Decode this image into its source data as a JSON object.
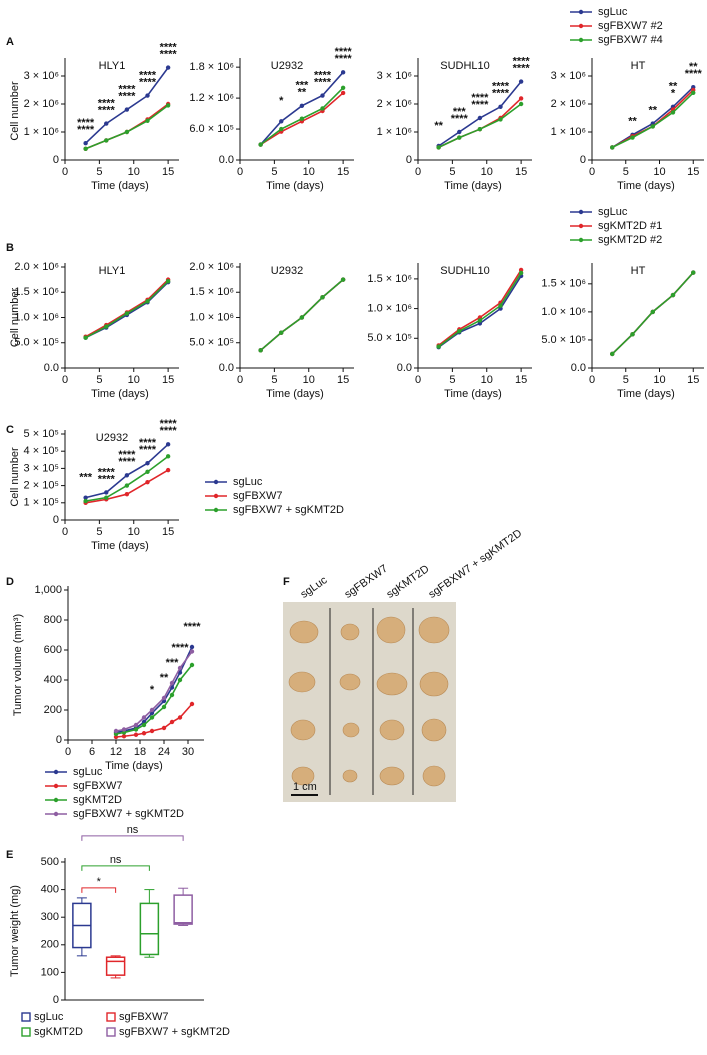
{
  "panel_labels": [
    "A",
    "B",
    "C",
    "D",
    "E",
    "F"
  ],
  "chart_data": [
    {
      "type": "line",
      "title": "HLY1",
      "x": [
        3,
        6,
        9,
        12,
        15
      ],
      "xlim": [
        0,
        16
      ],
      "xticks": [
        0,
        5,
        10,
        15
      ],
      "xlabel": "Time (days)",
      "ylabel": "Cell number",
      "ylim": [
        0,
        3500000
      ],
      "yticks": [
        0,
        {
          "value": 1000000,
          "label": "1 × 10⁶"
        },
        {
          "value": 2000000,
          "label": "2 × 10⁶"
        },
        {
          "value": 3000000,
          "label": "3 × 10⁶"
        }
      ],
      "series": [
        {
          "color": "#2b3990",
          "values": [
            600000,
            1300000,
            1800000,
            2300000,
            3300000
          ]
        },
        {
          "color": "#e0262a",
          "values": [
            400000,
            700000,
            1000000,
            1450000,
            2000000
          ],
          "significance": [
            "****",
            "****",
            "****",
            "****",
            "****"
          ]
        },
        {
          "color": "#2ca02c",
          "values": [
            400000,
            700000,
            1000000,
            1400000,
            1950000
          ],
          "significance": [
            "****",
            "****",
            "****",
            "****",
            "****"
          ]
        }
      ]
    },
    {
      "type": "line",
      "title": "U2932",
      "x": [
        3,
        6,
        9,
        12,
        15
      ],
      "xlim": [
        0,
        16
      ],
      "xticks": [
        0,
        5,
        10,
        15
      ],
      "xlabel": "Time (days)",
      "ylim": [
        0,
        1900000
      ],
      "yticks": [
        {
          "value": 0,
          "label": "0.0"
        },
        {
          "value": 600000,
          "label": "6.0 × 10⁵"
        },
        {
          "value": 1200000,
          "label": "1.2 × 10⁶"
        },
        {
          "value": 1800000,
          "label": "1.8 × 10⁶"
        }
      ],
      "series": [
        {
          "color": "#2b3990",
          "values": [
            300000,
            750000,
            1050000,
            1250000,
            1700000
          ]
        },
        {
          "color": "#e0262a",
          "values": [
            300000,
            550000,
            750000,
            950000,
            1300000
          ],
          "significance": [
            null,
            "*",
            "***",
            "****",
            "****"
          ]
        },
        {
          "color": "#2ca02c",
          "values": [
            300000,
            600000,
            800000,
            1000000,
            1400000
          ],
          "significance": [
            null,
            null,
            "**",
            "****",
            "****"
          ]
        }
      ]
    },
    {
      "type": "line",
      "title": "SUDHL10",
      "x": [
        3,
        6,
        9,
        12,
        15
      ],
      "xlim": [
        0,
        16
      ],
      "xticks": [
        0,
        5,
        10,
        15
      ],
      "xlabel": "Time (days)",
      "ylim": [
        0,
        3500000
      ],
      "yticks": [
        0,
        {
          "value": 1000000,
          "label": "1 × 10⁶"
        },
        {
          "value": 2000000,
          "label": "2 × 10⁶"
        },
        {
          "value": 3000000,
          "label": "3 × 10⁶"
        }
      ],
      "series": [
        {
          "color": "#2b3990",
          "values": [
            500000,
            1000000,
            1500000,
            1900000,
            2800000
          ]
        },
        {
          "color": "#e0262a",
          "values": [
            450000,
            800000,
            1100000,
            1500000,
            2200000
          ],
          "significance": [
            "**",
            "***",
            "****",
            "****",
            "****"
          ]
        },
        {
          "color": "#2ca02c",
          "values": [
            450000,
            800000,
            1100000,
            1450000,
            2000000
          ],
          "significance": [
            null,
            "****",
            "****",
            "****",
            "****"
          ]
        }
      ]
    },
    {
      "type": "line",
      "title": "HT",
      "x": [
        3,
        6,
        9,
        12,
        15
      ],
      "xlim": [
        0,
        16
      ],
      "xticks": [
        0,
        5,
        10,
        15
      ],
      "xlabel": "Time (days)",
      "ylim": [
        0,
        3500000
      ],
      "legend": "top",
      "yticks": [
        0,
        {
          "value": 1000000,
          "label": "1 × 10⁶"
        },
        {
          "value": 2000000,
          "label": "2 × 10⁶"
        },
        {
          "value": 3000000,
          "label": "3 × 10⁶"
        }
      ],
      "series": [
        {
          "name": "sgLuc",
          "color": "#2b3990",
          "values": [
            450000,
            900000,
            1300000,
            1900000,
            2600000
          ]
        },
        {
          "name": "sgFBXW7 #2",
          "color": "#e0262a",
          "values": [
            450000,
            850000,
            1200000,
            1800000,
            2500000
          ],
          "significance": [
            null,
            null,
            null,
            "**",
            "**"
          ]
        },
        {
          "name": "sgFBXW7 #4",
          "color": "#2ca02c",
          "values": [
            450000,
            800000,
            1200000,
            1700000,
            2400000
          ],
          "significance": [
            null,
            "**",
            "**",
            "*",
            "****"
          ]
        }
      ]
    },
    {
      "type": "line",
      "title": "HLY1",
      "x": [
        3,
        6,
        9,
        12,
        15
      ],
      "xlim": [
        0,
        16
      ],
      "xticks": [
        0,
        5,
        10,
        15
      ],
      "xlabel": "Time (days)",
      "ylabel": "Cell number",
      "ylim": [
        0,
        2000000
      ],
      "yticks": [
        {
          "value": 0,
          "label": "0.0"
        },
        {
          "value": 500000,
          "label": "5.0 × 10⁵"
        },
        {
          "value": 1000000,
          "label": "1.0 × 10⁶"
        },
        {
          "value": 1500000,
          "label": "1.5 × 10⁶"
        },
        {
          "value": 2000000,
          "label": "2.0 × 10⁶"
        }
      ],
      "series": [
        {
          "color": "#2b3990",
          "values": [
            600000,
            800000,
            1050000,
            1300000,
            1700000
          ]
        },
        {
          "color": "#e0262a",
          "values": [
            620000,
            850000,
            1100000,
            1350000,
            1750000
          ]
        },
        {
          "color": "#2ca02c",
          "values": [
            600000,
            820000,
            1080000,
            1320000,
            1720000
          ]
        }
      ]
    },
    {
      "type": "line",
      "title": "U2932",
      "x": [
        3,
        6,
        9,
        12,
        15
      ],
      "xlim": [
        0,
        16
      ],
      "xticks": [
        0,
        5,
        10,
        15
      ],
      "xlabel": "Time (days)",
      "ylim": [
        0,
        2000000
      ],
      "yticks": [
        {
          "value": 0,
          "label": "0.0"
        },
        {
          "value": 500000,
          "label": "5.0 × 10⁵"
        },
        {
          "value": 1000000,
          "label": "1.0 × 10⁶"
        },
        {
          "value": 1500000,
          "label": "1.5 × 10⁶"
        },
        {
          "value": 2000000,
          "label": "2.0 × 10⁶"
        }
      ],
      "series": [
        {
          "color": "#2b3990",
          "values": [
            350000,
            700000,
            1000000,
            1400000,
            1750000
          ]
        },
        {
          "color": "#e0262a",
          "values": [
            350000,
            700000,
            1000000,
            1400000,
            1750000
          ]
        },
        {
          "color": "#2ca02c",
          "values": [
            350000,
            700000,
            1000000,
            1400000,
            1750000
          ]
        }
      ]
    },
    {
      "type": "line",
      "title": "SUDHL10",
      "x": [
        3,
        6,
        9,
        12,
        15
      ],
      "xlim": [
        0,
        16
      ],
      "xticks": [
        0,
        5,
        10,
        15
      ],
      "xlabel": "Time (days)",
      "ylim": [
        0,
        1700000
      ],
      "yticks": [
        {
          "value": 0,
          "label": "0.0"
        },
        {
          "value": 500000,
          "label": "5.0 × 10⁵"
        },
        {
          "value": 1000000,
          "label": "1.0 × 10⁶"
        },
        {
          "value": 1500000,
          "label": "1.5 × 10⁶"
        }
      ],
      "series": [
        {
          "color": "#2b3990",
          "values": [
            350000,
            600000,
            750000,
            1000000,
            1550000
          ]
        },
        {
          "color": "#e0262a",
          "values": [
            380000,
            650000,
            850000,
            1100000,
            1650000
          ]
        },
        {
          "color": "#2ca02c",
          "values": [
            360000,
            620000,
            800000,
            1050000,
            1600000
          ]
        }
      ]
    },
    {
      "type": "line",
      "title": "HT",
      "x": [
        3,
        6,
        9,
        12,
        15
      ],
      "xlim": [
        0,
        16
      ],
      "xticks": [
        0,
        5,
        10,
        15
      ],
      "xlabel": "Time (days)",
      "ylim": [
        0,
        1800000
      ],
      "legend": "top",
      "yticks": [
        {
          "value": 0,
          "label": "0.0"
        },
        {
          "value": 500000,
          "label": "5.0 × 10⁵"
        },
        {
          "value": 1000000,
          "label": "1.0 × 10⁶"
        },
        {
          "value": 1500000,
          "label": "1.5 × 10⁶"
        }
      ],
      "series": [
        {
          "name": "sgLuc",
          "color": "#2b3990",
          "values": [
            250000,
            600000,
            1000000,
            1300000,
            1700000
          ]
        },
        {
          "name": "sgKMT2D #1",
          "color": "#e0262a",
          "values": [
            250000,
            600000,
            1000000,
            1300000,
            1700000
          ]
        },
        {
          "name": "sgKMT2D #2",
          "color": "#2ca02c",
          "values": [
            250000,
            600000,
            1000000,
            1300000,
            1700000
          ]
        }
      ]
    },
    {
      "type": "line",
      "title": "U2932",
      "x": [
        3,
        6,
        9,
        12,
        15
      ],
      "xlim": [
        0,
        16
      ],
      "xticks": [
        0,
        5,
        10,
        15
      ],
      "xlabel": "Time (days)",
      "ylabel": "Cell number",
      "ylim": [
        0,
        500000
      ],
      "legend": "right",
      "yticks": [
        0,
        {
          "value": 100000,
          "label": "1 × 10⁵"
        },
        {
          "value": 200000,
          "label": "2 × 10⁵"
        },
        {
          "value": 300000,
          "label": "3 × 10⁵"
        },
        {
          "value": 400000,
          "label": "4 × 10⁵"
        },
        {
          "value": 500000,
          "label": "5 × 10⁵"
        }
      ],
      "series": [
        {
          "name": "sgLuc",
          "color": "#2b3990",
          "values": [
            130000,
            160000,
            260000,
            330000,
            440000
          ]
        },
        {
          "name": "sgFBXW7",
          "color": "#e0262a",
          "values": [
            100000,
            120000,
            150000,
            220000,
            290000
          ],
          "significance": [
            "***",
            "****",
            "****",
            "****",
            "****"
          ]
        },
        {
          "name": "sgFBXW7 + sgKMT2D",
          "color": "#2ca02c",
          "values": [
            110000,
            130000,
            200000,
            280000,
            370000
          ],
          "significance": [
            null,
            "****",
            "****",
            "****",
            "****"
          ]
        }
      ]
    },
    {
      "type": "line",
      "x": [
        12,
        14,
        17,
        19,
        21,
        24,
        26,
        28,
        31
      ],
      "xlim": [
        0,
        33
      ],
      "xticks": [
        0,
        6,
        12,
        18,
        24,
        30
      ],
      "xlabel": "Time (days)",
      "ylabel": "Tumor volume (mm³)",
      "ylim": [
        0,
        1000
      ],
      "legend": "below",
      "yticks": [
        0,
        200,
        400,
        600,
        800,
        {
          "value": 1000,
          "label": "1,000"
        }
      ],
      "series": [
        {
          "name": "sgLuc",
          "color": "#2b3990",
          "values": [
            50,
            60,
            80,
            120,
            180,
            260,
            350,
            450,
            620
          ]
        },
        {
          "name": "sgFBXW7",
          "color": "#e0262a",
          "values": [
            20,
            25,
            35,
            45,
            60,
            80,
            120,
            150,
            240
          ],
          "significance": [
            null,
            null,
            null,
            null,
            "*",
            "**",
            "***",
            "****",
            "****"
          ]
        },
        {
          "name": "sgKMT2D",
          "color": "#2ca02c",
          "values": [
            40,
            50,
            70,
            100,
            150,
            220,
            300,
            400,
            500
          ]
        },
        {
          "name": "sgFBXW7 + sgKMT2D",
          "color": "#8e5ea2",
          "values": [
            60,
            70,
            100,
            150,
            200,
            280,
            380,
            480,
            590
          ]
        }
      ]
    },
    {
      "type": "box",
      "ylabel": "Tumor weight (mg)",
      "ylim": [
        0,
        500
      ],
      "yticks": [
        0,
        100,
        200,
        300,
        400,
        500
      ],
      "legend": "below",
      "categories": [
        "sgLuc",
        "sgFBXW7",
        "sgKMT2D",
        "sgFBXW7 + sgKMT2D"
      ],
      "colors": [
        "#2b3990",
        "#e0262a",
        "#2ca02c",
        "#8e5ea2"
      ],
      "boxes": [
        {
          "min": 160,
          "q1": 190,
          "median": 270,
          "q3": 350,
          "max": 370
        },
        {
          "min": 80,
          "q1": 90,
          "median": 140,
          "q3": 155,
          "max": 160,
          "significance": "*"
        },
        {
          "min": 155,
          "q1": 165,
          "median": 240,
          "q3": 350,
          "max": 400,
          "significance": "ns"
        },
        {
          "min": 270,
          "q1": 275,
          "median": 280,
          "q3": 380,
          "max": 405,
          "significance": "ns"
        }
      ]
    }
  ],
  "photo": {
    "labels": [
      "sgLuc",
      "sgFBXW7",
      "sgKMT2D",
      "sgFBXW7 + sgKMT2D"
    ],
    "scale": "1 cm"
  }
}
